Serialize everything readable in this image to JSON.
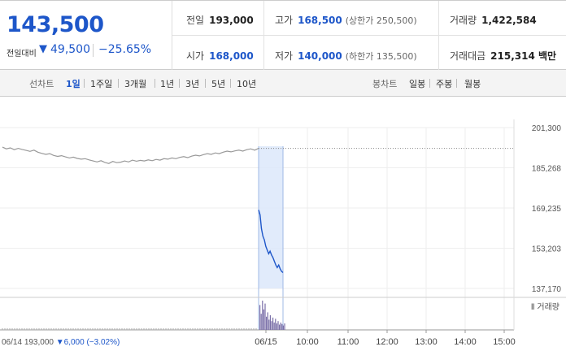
{
  "quote": {
    "price": "143,500",
    "change_label": "전일대비",
    "change_arrow": "▼",
    "change_value": "49,500",
    "change_pct": "−25.65%",
    "prev_close": {
      "label": "전일",
      "value": "193,000"
    },
    "high": {
      "label": "고가",
      "value": "168,500",
      "limit_label": "(상한가 250,500)"
    },
    "volume": {
      "label": "거래량",
      "value": "1,422,584"
    },
    "open": {
      "label": "시가",
      "value": "168,000"
    },
    "low": {
      "label": "저가",
      "value": "140,000",
      "limit_label": "(하한가 135,500)"
    },
    "amount": {
      "label": "거래대금",
      "value": "215,314 백만"
    }
  },
  "tabs": {
    "line_chart_label": "선차트",
    "periods": [
      "1일",
      "1주일",
      "3개월",
      "1년",
      "3년",
      "5년",
      "10년"
    ],
    "active_period": "1일",
    "candle_chart_label": "봉차트",
    "candle_periods": [
      "일봉",
      "주봉",
      "월봉"
    ]
  },
  "chart_data": {
    "type": "line",
    "y_ticks": [
      "201,300",
      "185,268",
      "169,235",
      "153,203",
      "137,170"
    ],
    "ylim": [
      137170,
      201300
    ],
    "x_ticks": [
      "06/15",
      "10:00",
      "11:00",
      "12:00",
      "13:00",
      "14:00",
      "15:00"
    ],
    "volume_label": "Ⅱ 거래량",
    "footer": {
      "date": "06/14",
      "close": "193,000",
      "arrow": "▼",
      "change": "6,000",
      "pct": "(−3.02%)"
    },
    "reference_line": 193000,
    "series": [
      {
        "values": [
          193500,
          192800,
          193200,
          192500,
          193000,
          192600,
          192200,
          191800,
          192300,
          191500,
          191000,
          190600,
          190900,
          190200,
          189800,
          190100,
          189600,
          189200,
          189500,
          189000,
          188700,
          188900,
          188400,
          188000,
          187600,
          188100,
          187400,
          187000,
          187800,
          187300,
          187500,
          188000,
          187600,
          188300,
          187900,
          188200,
          188000,
          188400,
          188100,
          188600,
          188300,
          188900,
          188700,
          189200,
          188900,
          189400,
          189700,
          189300,
          189900,
          190300,
          190000,
          190500,
          190900,
          190600,
          191200,
          190900,
          191500,
          191900,
          191600,
          192000,
          192300,
          191900,
          192500,
          192800,
          192300,
          193000
        ]
      },
      {
        "values": [
          168500,
          166500,
          161000,
          158000,
          156500,
          154000,
          152500,
          151000,
          152000,
          150500,
          149500,
          148000,
          146500,
          145500,
          146500,
          145000,
          144000,
          143500
        ]
      }
    ],
    "volume_bars": [
      0.85,
      0.55,
      1.0,
      0.7,
      0.9,
      0.45,
      0.6,
      0.35,
      0.5,
      0.3,
      0.42,
      0.25,
      0.38,
      0.22,
      0.3,
      0.18,
      0.25,
      0.2,
      0.15,
      0.22
    ]
  },
  "colors": {
    "blue": "#1d56c9",
    "grey_line": "#999999",
    "highlight": "#dce8fa"
  }
}
